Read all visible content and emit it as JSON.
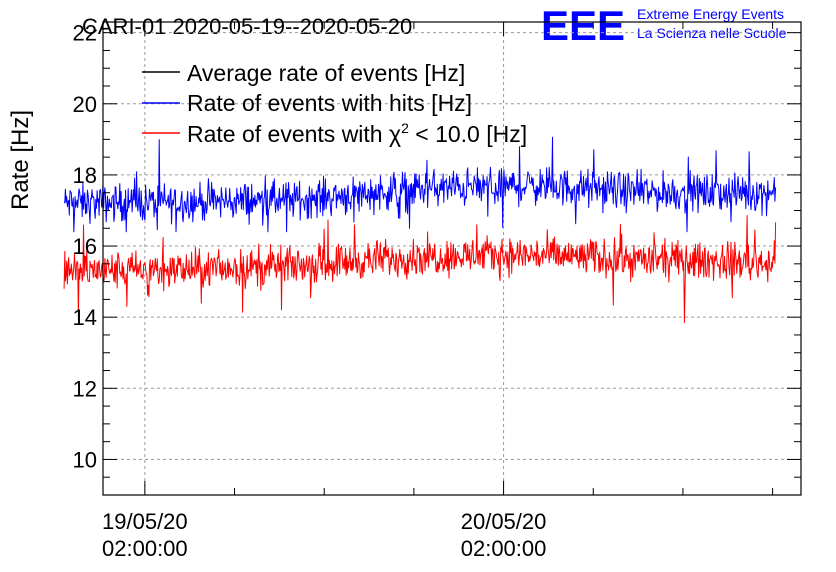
{
  "chart_data": {
    "type": "line",
    "title": "CARI-01 2020-05-19--2020-05-20",
    "xlabel": "",
    "ylabel": "Rate [Hz]",
    "ylim": [
      9,
      22.3
    ],
    "yticks": [
      "10",
      "12",
      "14",
      "16",
      "18",
      "20",
      "22"
    ],
    "x_unit": "hours since 2020-05-19 00:00:00",
    "xlim": [
      -0.8,
      45.9
    ],
    "xticks": [
      {
        "hour": 2,
        "date": "19/05/20",
        "time": "02:00:00"
      },
      {
        "hour": 26,
        "date": "20/05/20",
        "time": "02:00:00"
      }
    ],
    "time_range_hours": [
      -3.4,
      44.2
    ],
    "grid": true,
    "legend_position": "top-left",
    "series": [
      {
        "name": "Average rate of events [Hz]",
        "color": "#000000",
        "summary": "not visible behind other series"
      },
      {
        "name": "Rate of events with hits [Hz]",
        "color": "#0000ff",
        "mean_profile": [
          {
            "t": -3.4,
            "mean": 17.2
          },
          {
            "t": 6.0,
            "mean": 17.25
          },
          {
            "t": 12.0,
            "mean": 17.3
          },
          {
            "t": 20.0,
            "mean": 17.6
          },
          {
            "t": 28.0,
            "mean": 17.7
          },
          {
            "t": 36.0,
            "mean": 17.5
          },
          {
            "t": 44.2,
            "mean": 17.5
          }
        ],
        "spread": 0.35,
        "peak": 19.4,
        "dip": 16.4
      },
      {
        "name": "Rate of events with chi2 < 10.0 [Hz]",
        "color": "#ff0000",
        "mean_profile": [
          {
            "t": -3.4,
            "mean": 15.3
          },
          {
            "t": 6.0,
            "mean": 15.35
          },
          {
            "t": 12.0,
            "mean": 15.45
          },
          {
            "t": 20.0,
            "mean": 15.7
          },
          {
            "t": 28.0,
            "mean": 15.75
          },
          {
            "t": 36.0,
            "mean": 15.6
          },
          {
            "t": 44.2,
            "mean": 15.55
          }
        ],
        "spread": 0.35,
        "peak": 17.5,
        "dip": 13.4
      }
    ]
  },
  "legend": {
    "prefix": "Rate of events with ",
    "chi": "χ",
    "sup": "2",
    "suffix": " < 10.0 [Hz]"
  },
  "brand": {
    "logo_text": "EEE",
    "line1": "Extreme Energy Events",
    "line2": "La Scienza nelle Scuole",
    "color": "#0000ff"
  }
}
